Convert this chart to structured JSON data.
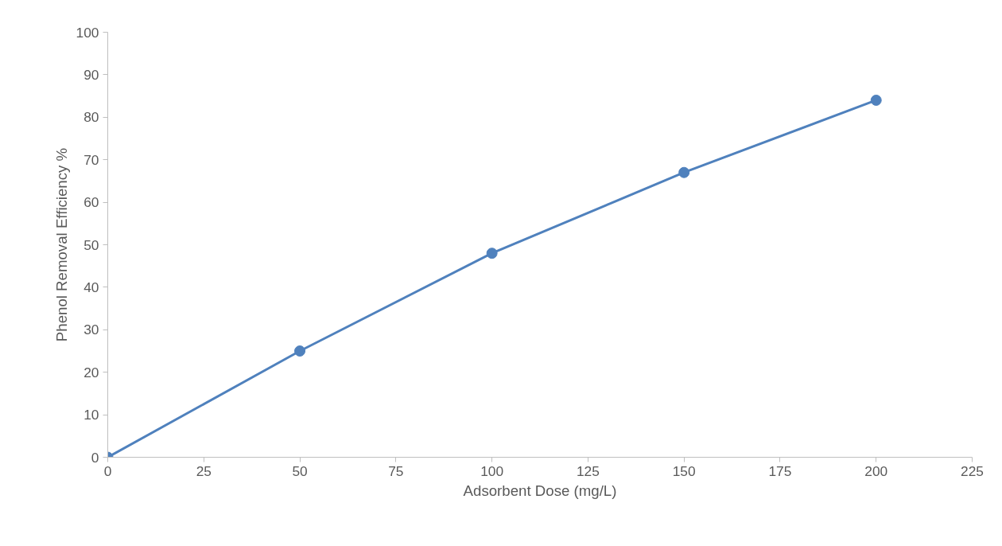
{
  "chart_data": {
    "type": "line",
    "xlabel": "Adsorbent Dose (mg/L)",
    "ylabel": "Phenol Removal Efficiency %",
    "x": [
      0,
      50,
      100,
      150,
      200
    ],
    "series": [
      {
        "color": "#4f81bd",
        "values": [
          0,
          25,
          48,
          67,
          84
        ]
      }
    ],
    "xlim": [
      0,
      225
    ],
    "xticks": [
      0,
      25,
      50,
      75,
      100,
      125,
      150,
      175,
      200,
      225
    ],
    "ylim": [
      0,
      100
    ],
    "yticks": [
      0,
      10,
      20,
      30,
      40,
      50,
      60,
      70,
      80,
      90,
      100
    ],
    "grid": false,
    "marker": "circle",
    "line_style": "solid"
  }
}
